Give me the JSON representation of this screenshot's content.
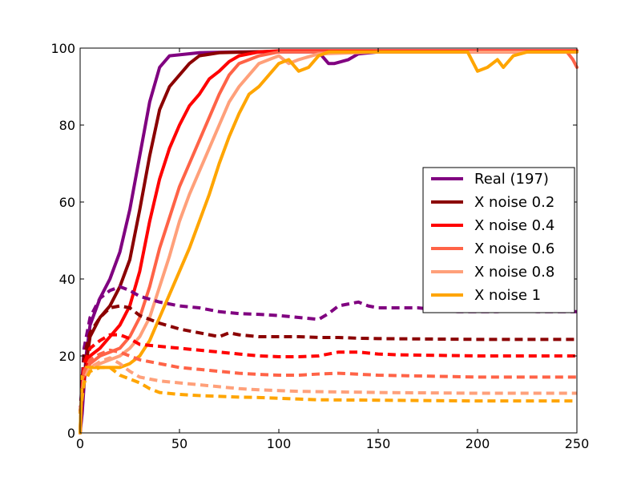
{
  "chart_data": {
    "type": "line",
    "title": "",
    "xlabel": "",
    "ylabel": "",
    "xlim": [
      0,
      250
    ],
    "ylim": [
      0,
      100
    ],
    "x_ticks": [
      0,
      50,
      100,
      150,
      200,
      250
    ],
    "y_ticks": [
      0,
      20,
      40,
      60,
      80,
      100
    ],
    "grid": false,
    "legend_placement": "center-right",
    "legend_entries": [
      "Real (197)",
      "X noise 0.2",
      "X noise 0.4",
      "X noise 0.6",
      "X noise 0.8",
      "X noise 1"
    ],
    "series": [
      {
        "name": "Real (197)",
        "style": "solid",
        "color": "#800080",
        "points": [
          [
            0,
            0
          ],
          [
            1,
            5
          ],
          [
            3,
            20
          ],
          [
            5,
            28
          ],
          [
            10,
            35
          ],
          [
            15,
            40
          ],
          [
            20,
            47
          ],
          [
            25,
            58
          ],
          [
            30,
            72
          ],
          [
            35,
            86
          ],
          [
            40,
            95
          ],
          [
            45,
            98
          ],
          [
            60,
            98.8
          ],
          [
            80,
            99
          ],
          [
            120,
            99
          ],
          [
            125,
            96
          ],
          [
            128,
            96
          ],
          [
            135,
            97
          ],
          [
            140,
            98.5
          ],
          [
            150,
            99
          ],
          [
            200,
            99
          ],
          [
            250,
            99
          ]
        ]
      },
      {
        "name": "X noise 0.2",
        "style": "solid",
        "color": "#8b0000",
        "points": [
          [
            0,
            0
          ],
          [
            1,
            10
          ],
          [
            3,
            18
          ],
          [
            5,
            25
          ],
          [
            10,
            30
          ],
          [
            15,
            33
          ],
          [
            20,
            38
          ],
          [
            25,
            45
          ],
          [
            30,
            58
          ],
          [
            35,
            72
          ],
          [
            40,
            84
          ],
          [
            45,
            90
          ],
          [
            50,
            93
          ],
          [
            55,
            96
          ],
          [
            60,
            98
          ],
          [
            70,
            98.8
          ],
          [
            100,
            99.2
          ],
          [
            150,
            99.2
          ],
          [
            200,
            99.2
          ],
          [
            250,
            99.2
          ]
        ]
      },
      {
        "name": "X noise 0.4",
        "style": "solid",
        "color": "#ff0000",
        "points": [
          [
            0,
            0
          ],
          [
            1,
            12
          ],
          [
            3,
            17
          ],
          [
            5,
            20
          ],
          [
            10,
            22
          ],
          [
            15,
            25
          ],
          [
            20,
            28
          ],
          [
            25,
            33
          ],
          [
            30,
            42
          ],
          [
            35,
            55
          ],
          [
            40,
            66
          ],
          [
            45,
            74
          ],
          [
            50,
            80
          ],
          [
            55,
            85
          ],
          [
            60,
            88
          ],
          [
            65,
            92
          ],
          [
            70,
            94
          ],
          [
            75,
            96.5
          ],
          [
            80,
            98
          ],
          [
            90,
            99
          ],
          [
            100,
            99.3
          ],
          [
            150,
            99.3
          ],
          [
            200,
            99.3
          ],
          [
            250,
            99.3
          ]
        ]
      },
      {
        "name": "X noise 0.6",
        "style": "solid",
        "color": "#ff6347",
        "points": [
          [
            0,
            0
          ],
          [
            1,
            14
          ],
          [
            5,
            18
          ],
          [
            10,
            20
          ],
          [
            15,
            21
          ],
          [
            20,
            22
          ],
          [
            25,
            25
          ],
          [
            30,
            30
          ],
          [
            35,
            38
          ],
          [
            40,
            48
          ],
          [
            45,
            56
          ],
          [
            50,
            64
          ],
          [
            55,
            70
          ],
          [
            60,
            76
          ],
          [
            65,
            82
          ],
          [
            70,
            88
          ],
          [
            75,
            93
          ],
          [
            80,
            96
          ],
          [
            90,
            98
          ],
          [
            100,
            99
          ],
          [
            150,
            99
          ],
          [
            200,
            99
          ],
          [
            240,
            99
          ],
          [
            245,
            99
          ],
          [
            248,
            97
          ],
          [
            250,
            95
          ]
        ]
      },
      {
        "name": "X noise 0.8",
        "style": "solid",
        "color": "#ffa07a",
        "points": [
          [
            0,
            0
          ],
          [
            1,
            15
          ],
          [
            5,
            17
          ],
          [
            10,
            18
          ],
          [
            15,
            19
          ],
          [
            20,
            20
          ],
          [
            25,
            22
          ],
          [
            30,
            25
          ],
          [
            35,
            30
          ],
          [
            40,
            38
          ],
          [
            45,
            46
          ],
          [
            50,
            55
          ],
          [
            55,
            62
          ],
          [
            60,
            68
          ],
          [
            65,
            74
          ],
          [
            70,
            80
          ],
          [
            75,
            86
          ],
          [
            80,
            90
          ],
          [
            85,
            93
          ],
          [
            90,
            96
          ],
          [
            95,
            97
          ],
          [
            100,
            98
          ],
          [
            105,
            96
          ],
          [
            110,
            97
          ],
          [
            120,
            98.5
          ],
          [
            150,
            99
          ],
          [
            200,
            99
          ],
          [
            250,
            99
          ]
        ]
      },
      {
        "name": "X noise 1",
        "style": "solid",
        "color": "#ffa500",
        "points": [
          [
            0,
            0
          ],
          [
            1,
            15
          ],
          [
            3,
            17
          ],
          [
            10,
            17
          ],
          [
            20,
            17
          ],
          [
            25,
            18
          ],
          [
            30,
            20
          ],
          [
            35,
            24
          ],
          [
            40,
            30
          ],
          [
            45,
            36
          ],
          [
            50,
            42
          ],
          [
            55,
            48
          ],
          [
            60,
            55
          ],
          [
            65,
            62
          ],
          [
            70,
            70
          ],
          [
            75,
            77
          ],
          [
            80,
            83
          ],
          [
            85,
            88
          ],
          [
            90,
            90
          ],
          [
            95,
            93
          ],
          [
            100,
            96
          ],
          [
            105,
            97
          ],
          [
            110,
            94
          ],
          [
            115,
            95
          ],
          [
            120,
            98
          ],
          [
            125,
            99
          ],
          [
            130,
            99
          ],
          [
            150,
            99
          ],
          [
            195,
            99
          ],
          [
            198,
            96
          ],
          [
            200,
            94
          ],
          [
            205,
            95
          ],
          [
            210,
            97
          ],
          [
            213,
            95
          ],
          [
            218,
            98
          ],
          [
            225,
            99
          ],
          [
            250,
            99
          ]
        ]
      },
      {
        "name": "",
        "style": "dashed",
        "color": "#800080",
        "points": [
          [
            0,
            5
          ],
          [
            2,
            22
          ],
          [
            5,
            30
          ],
          [
            10,
            35
          ],
          [
            15,
            37
          ],
          [
            20,
            38
          ],
          [
            25,
            37
          ],
          [
            30,
            35.5
          ],
          [
            40,
            34
          ],
          [
            50,
            33
          ],
          [
            60,
            32.5
          ],
          [
            70,
            31.5
          ],
          [
            80,
            31
          ],
          [
            90,
            30.8
          ],
          [
            100,
            30.5
          ],
          [
            110,
            30
          ],
          [
            120,
            29.5
          ],
          [
            125,
            31
          ],
          [
            130,
            33
          ],
          [
            140,
            34
          ],
          [
            145,
            33
          ],
          [
            150,
            32.5
          ],
          [
            160,
            32.5
          ],
          [
            170,
            32.5
          ],
          [
            180,
            32
          ],
          [
            190,
            31.5
          ],
          [
            200,
            31.5
          ],
          [
            210,
            31.5
          ],
          [
            220,
            32
          ],
          [
            230,
            31.5
          ],
          [
            240,
            31.5
          ],
          [
            250,
            31.5
          ]
        ]
      },
      {
        "name": "",
        "style": "dashed",
        "color": "#8b0000",
        "points": [
          [
            0,
            5
          ],
          [
            2,
            20
          ],
          [
            5,
            26
          ],
          [
            10,
            30
          ],
          [
            15,
            32.5
          ],
          [
            20,
            33
          ],
          [
            25,
            32.5
          ],
          [
            30,
            30.5
          ],
          [
            40,
            28.5
          ],
          [
            50,
            27
          ],
          [
            60,
            26
          ],
          [
            70,
            25
          ],
          [
            75,
            26
          ],
          [
            80,
            25.5
          ],
          [
            90,
            25
          ],
          [
            100,
            25
          ],
          [
            110,
            25
          ],
          [
            120,
            24.8
          ],
          [
            130,
            24.8
          ],
          [
            140,
            24.6
          ],
          [
            150,
            24.5
          ],
          [
            200,
            24.3
          ],
          [
            250,
            24.3
          ]
        ]
      },
      {
        "name": "",
        "style": "dashed",
        "color": "#ff0000",
        "points": [
          [
            0,
            5
          ],
          [
            2,
            18
          ],
          [
            5,
            22
          ],
          [
            10,
            24
          ],
          [
            15,
            25.5
          ],
          [
            20,
            25.5
          ],
          [
            25,
            24.5
          ],
          [
            30,
            23
          ],
          [
            40,
            22.5
          ],
          [
            50,
            22
          ],
          [
            60,
            21.5
          ],
          [
            70,
            21
          ],
          [
            80,
            20.5
          ],
          [
            90,
            20
          ],
          [
            100,
            19.8
          ],
          [
            110,
            19.8
          ],
          [
            120,
            20
          ],
          [
            130,
            21
          ],
          [
            140,
            21
          ],
          [
            150,
            20.5
          ],
          [
            160,
            20.3
          ],
          [
            200,
            20
          ],
          [
            250,
            20
          ]
        ]
      },
      {
        "name": "",
        "style": "dashed",
        "color": "#ff6347",
        "points": [
          [
            0,
            5
          ],
          [
            2,
            16
          ],
          [
            5,
            19
          ],
          [
            10,
            20.5
          ],
          [
            15,
            21.5
          ],
          [
            20,
            21
          ],
          [
            25,
            20
          ],
          [
            30,
            19
          ],
          [
            40,
            18
          ],
          [
            50,
            17
          ],
          [
            60,
            16.5
          ],
          [
            70,
            16
          ],
          [
            80,
            15.5
          ],
          [
            90,
            15.2
          ],
          [
            100,
            15
          ],
          [
            110,
            15
          ],
          [
            120,
            15.3
          ],
          [
            130,
            15.5
          ],
          [
            150,
            15
          ],
          [
            200,
            14.5
          ],
          [
            250,
            14.5
          ]
        ]
      },
      {
        "name": "",
        "style": "dashed",
        "color": "#ffa07a",
        "points": [
          [
            0,
            5
          ],
          [
            2,
            14
          ],
          [
            5,
            17
          ],
          [
            10,
            18.5
          ],
          [
            15,
            19.5
          ],
          [
            20,
            18
          ],
          [
            25,
            16
          ],
          [
            30,
            14.5
          ],
          [
            40,
            13.5
          ],
          [
            50,
            13
          ],
          [
            60,
            12.5
          ],
          [
            70,
            12
          ],
          [
            80,
            11.5
          ],
          [
            90,
            11.2
          ],
          [
            100,
            11
          ],
          [
            110,
            10.8
          ],
          [
            150,
            10.5
          ],
          [
            200,
            10.3
          ],
          [
            250,
            10.3
          ]
        ]
      },
      {
        "name": "",
        "style": "dashed",
        "color": "#ffa500",
        "points": [
          [
            0,
            5
          ],
          [
            2,
            13
          ],
          [
            5,
            16
          ],
          [
            10,
            17
          ],
          [
            15,
            17
          ],
          [
            20,
            15
          ],
          [
            25,
            14
          ],
          [
            30,
            13
          ],
          [
            35,
            11.5
          ],
          [
            40,
            10.5
          ],
          [
            50,
            10
          ],
          [
            60,
            9.7
          ],
          [
            70,
            9.5
          ],
          [
            80,
            9.3
          ],
          [
            90,
            9.2
          ],
          [
            100,
            9
          ],
          [
            110,
            8.8
          ],
          [
            120,
            8.6
          ],
          [
            150,
            8.5
          ],
          [
            200,
            8.3
          ],
          [
            250,
            8.3
          ]
        ]
      }
    ]
  }
}
